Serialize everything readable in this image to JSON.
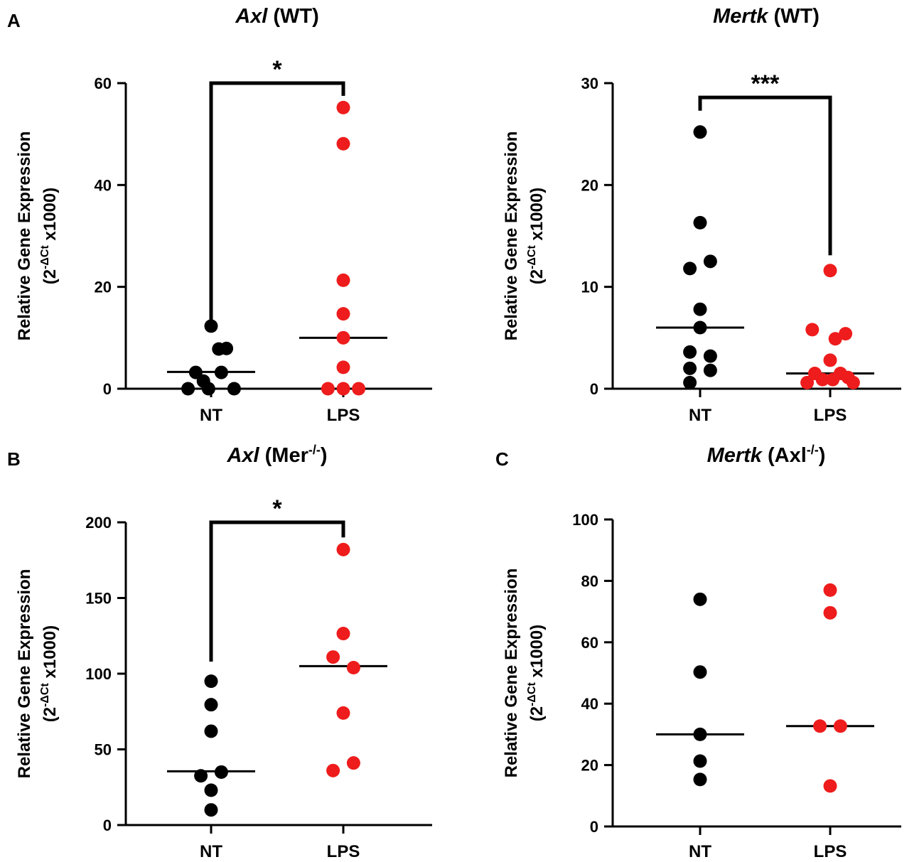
{
  "figure": {
    "panel_labels": {
      "A": "A",
      "B": "B",
      "C": "C"
    },
    "common_ylabel_line1": "Relative Gene Expression",
    "common_ylabel_line2_prefix": "(2",
    "common_ylabel_line2_superscript": "-ΔCt",
    "common_ylabel_line2_suffix": " x1000)",
    "colors": {
      "NT": "#000000",
      "LPS": "#ee1c1c",
      "axis": "#000000"
    }
  },
  "chart_data": [
    {
      "id": "axl-wt",
      "type": "scatter",
      "title_italic": "Axl",
      "title_rest": " (WT)",
      "title_superscript": "",
      "title_close": "",
      "ylabel": "Relative Gene Expression (2^-ΔCt x1000)",
      "categories": [
        "NT",
        "LPS"
      ],
      "ylim": [
        0,
        60
      ],
      "yticks": [
        "0",
        "20",
        "40",
        "60"
      ],
      "series": [
        {
          "name": "NT",
          "color": "#000000",
          "median": 3.3,
          "points": [
            {
              "x": -0.45,
              "y": 0
            },
            {
              "x": -0.3,
              "y": 3.2
            },
            {
              "x": -0.15,
              "y": 1.5
            },
            {
              "x": 0,
              "y": 12.3
            },
            {
              "x": 0.15,
              "y": 7.8
            },
            {
              "x": 0.3,
              "y": 7.9
            },
            {
              "x": -0.05,
              "y": 0
            },
            {
              "x": 0.2,
              "y": 3.2
            },
            {
              "x": 0.45,
              "y": 0
            }
          ]
        },
        {
          "name": "LPS",
          "color": "#ee1c1c",
          "median": 10,
          "points": [
            {
              "x": 0,
              "y": 55.2
            },
            {
              "x": 0,
              "y": 48.1
            },
            {
              "x": 0,
              "y": 21.3
            },
            {
              "x": 0,
              "y": 14.7
            },
            {
              "x": 0,
              "y": 10
            },
            {
              "x": 0,
              "y": 4.2
            },
            {
              "x": -0.3,
              "y": 0
            },
            {
              "x": 0,
              "y": 0
            },
            {
              "x": 0.3,
              "y": 0
            }
          ]
        }
      ],
      "significance": {
        "label": "*",
        "left_y": 12.5,
        "right_y": 57.5,
        "top_y": 60
      }
    },
    {
      "id": "mertk-wt",
      "type": "scatter",
      "title_italic": "Mertk",
      "title_rest": " (WT)",
      "title_superscript": "",
      "title_close": "",
      "ylabel": "Relative Gene Expression (2^-ΔCt x1000)",
      "categories": [
        "NT",
        "LPS"
      ],
      "ylim": [
        0,
        30
      ],
      "yticks": [
        "0",
        "10",
        "20",
        "30"
      ],
      "series": [
        {
          "name": "NT",
          "color": "#000000",
          "median": 6,
          "points": [
            {
              "x": 0,
              "y": 25.2
            },
            {
              "x": 0,
              "y": 16.3
            },
            {
              "x": -0.2,
              "y": 11.8
            },
            {
              "x": 0.2,
              "y": 12.5
            },
            {
              "x": 0,
              "y": 7.8
            },
            {
              "x": 0,
              "y": 6
            },
            {
              "x": -0.2,
              "y": 3.6
            },
            {
              "x": 0.2,
              "y": 3.2
            },
            {
              "x": -0.2,
              "y": 2
            },
            {
              "x": 0.2,
              "y": 1.8
            },
            {
              "x": -0.2,
              "y": 0.6
            }
          ]
        },
        {
          "name": "LPS",
          "color": "#ee1c1c",
          "median": 1.5,
          "points": [
            {
              "x": 0,
              "y": 11.6
            },
            {
              "x": -0.35,
              "y": 5.8
            },
            {
              "x": 0.1,
              "y": 4.9
            },
            {
              "x": 0.3,
              "y": 5.4
            },
            {
              "x": 0,
              "y": 2.8
            },
            {
              "x": -0.3,
              "y": 1.5
            },
            {
              "x": 0.2,
              "y": 1.5
            },
            {
              "x": -0.45,
              "y": 0.6
            },
            {
              "x": -0.15,
              "y": 0.9
            },
            {
              "x": 0.05,
              "y": 0.9
            },
            {
              "x": 0.45,
              "y": 0.6
            },
            {
              "x": 0.35,
              "y": 1.1
            }
          ]
        }
      ],
      "significance": {
        "label": "***",
        "left_y": 27.3,
        "right_y": 13.1,
        "top_y": 28.6
      }
    },
    {
      "id": "axl-mer",
      "type": "scatter",
      "title_italic": "Axl",
      "title_rest": " (Mer",
      "title_superscript": "-/-",
      "title_close": ")",
      "ylabel": "Relative Gene Expression (2^-ΔCt x1000)",
      "categories": [
        "NT",
        "LPS"
      ],
      "ylim": [
        0,
        200
      ],
      "yticks": [
        "0",
        "50",
        "100",
        "150",
        "200"
      ],
      "series": [
        {
          "name": "NT",
          "color": "#000000",
          "median": 35.5,
          "points": [
            {
              "x": 0,
              "y": 95
            },
            {
              "x": 0,
              "y": 79.5
            },
            {
              "x": 0,
              "y": 62
            },
            {
              "x": -0.2,
              "y": 32.5
            },
            {
              "x": 0.2,
              "y": 35
            },
            {
              "x": 0,
              "y": 23
            },
            {
              "x": 0,
              "y": 10
            }
          ]
        },
        {
          "name": "LPS",
          "color": "#ee1c1c",
          "median": 105,
          "points": [
            {
              "x": 0,
              "y": 182
            },
            {
              "x": 0,
              "y": 126.5
            },
            {
              "x": -0.2,
              "y": 111
            },
            {
              "x": 0.2,
              "y": 104
            },
            {
              "x": 0,
              "y": 74
            },
            {
              "x": -0.2,
              "y": 36
            },
            {
              "x": 0.2,
              "y": 41
            }
          ]
        }
      ],
      "significance": {
        "label": "*",
        "left_y": 108,
        "right_y": 190,
        "top_y": 200
      }
    },
    {
      "id": "mertk-axl",
      "type": "scatter",
      "title_italic": "Mertk",
      "title_rest": " (Axl",
      "title_superscript": "-/-",
      "title_close": ")",
      "ylabel": "Relative Gene Expression (2^-ΔCt x1000)",
      "categories": [
        "NT",
        "LPS"
      ],
      "ylim": [
        0,
        100
      ],
      "yticks": [
        "0",
        "20",
        "40",
        "60",
        "80",
        "100"
      ],
      "series": [
        {
          "name": "NT",
          "color": "#000000",
          "median": 30,
          "points": [
            {
              "x": 0,
              "y": 74
            },
            {
              "x": 0,
              "y": 50.3
            },
            {
              "x": 0,
              "y": 30
            },
            {
              "x": 0,
              "y": 21.3
            },
            {
              "x": 0,
              "y": 15.3
            }
          ]
        },
        {
          "name": "LPS",
          "color": "#ee1c1c",
          "median": 32.7,
          "points": [
            {
              "x": 0,
              "y": 77
            },
            {
              "x": 0,
              "y": 69.6
            },
            {
              "x": -0.2,
              "y": 32.7
            },
            {
              "x": 0.2,
              "y": 32.7
            },
            {
              "x": 0,
              "y": 13.2
            }
          ]
        }
      ],
      "significance": null
    }
  ]
}
